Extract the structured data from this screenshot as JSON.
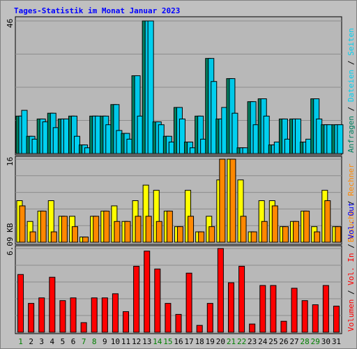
{
  "colors": {
    "background": "#c0c0c0",
    "plot_bg": "#b8b8b8",
    "grid": "#8c8c8c",
    "title": "#0000ff",
    "requests": "#008060",
    "pages": "#00d0f0",
    "files": "#00c8e8",
    "visits": "#ffff00",
    "hosts": "#ff8800",
    "kb_in": "#ff0000",
    "kb_out": "#0000ff",
    "volume": "#ff0000",
    "weekday_label": "#000000",
    "weekend_label": "#008000"
  },
  "chart_data": {
    "title": "Tages-Statistik im Monat Januar 2023",
    "type": "bar",
    "days": [
      1,
      2,
      3,
      4,
      5,
      6,
      7,
      8,
      9,
      10,
      11,
      12,
      13,
      14,
      15,
      16,
      17,
      18,
      19,
      20,
      21,
      22,
      23,
      24,
      25,
      26,
      27,
      28,
      29,
      30,
      31
    ],
    "weekend_days": [
      1,
      7,
      8,
      14,
      15,
      21,
      22,
      28,
      29
    ],
    "panels": [
      {
        "ymax_label": "46",
        "ymax": 46,
        "right_labels": [
          "Anfragen",
          "Dateien",
          "Seiten"
        ],
        "series": [
          {
            "name": "Anfragen",
            "values": [
              13,
              6,
              12,
              14,
              12,
              13,
              3,
              13,
              13,
              17,
              7,
              27,
              46,
              11,
              6,
              16,
              4,
              13,
              33,
              12,
              26,
              2,
              18,
              19,
              3,
              12,
              12,
              4,
              19,
              10,
              10
            ]
          },
          {
            "name": "Dateien",
            "values": [
              13,
              6,
              12,
              14,
              12,
              13,
              3,
              13,
              13,
              17,
              7,
              27,
              46,
              11,
              6,
              16,
              4,
              13,
              33,
              12,
              26,
              2,
              18,
              19,
              3,
              12,
              12,
              4,
              19,
              10,
              10
            ]
          },
          {
            "name": "Seiten",
            "values": [
              15,
              5,
              11,
              9,
              12,
              6,
              2,
              13,
              10,
              8,
              5,
              13,
              46,
              10,
              4,
              12,
              2,
              5,
              25,
              16,
              14,
              2,
              10,
              13,
              4,
              5,
              12,
              5,
              12,
              10,
              10
            ]
          }
        ]
      },
      {
        "ymax_label": "16",
        "ymax": 16,
        "right_labels": [
          "Besuche",
          "Rechner"
        ],
        "series": [
          {
            "name": "Besuche",
            "values": [
              8,
              4,
              6,
              8,
              5,
              5,
              1,
              5,
              6,
              7,
              4,
              8,
              11,
              10,
              6,
              3,
              10,
              2,
              5,
              12,
              16,
              12,
              2,
              8,
              8,
              3,
              4,
              6,
              3,
              10,
              3
            ]
          },
          {
            "name": "Rechner",
            "values": [
              7,
              2,
              6,
              2,
              5,
              3,
              1,
              5,
              6,
              4,
              4,
              5,
              5,
              4,
              6,
              3,
              5,
              2,
              3,
              16,
              16,
              5,
              2,
              4,
              7,
              3,
              4,
              6,
              2,
              8,
              3
            ]
          }
        ]
      },
      {
        "ymax_label": "6.09 KB",
        "ymax": 6.09,
        "right_labels": [
          "Volumen",
          "Vol. In",
          "Vol. Out"
        ],
        "series": [
          {
            "name": "Volumen",
            "values": [
              4.2,
              2.1,
              2.5,
              4.0,
              2.3,
              2.5,
              0.7,
              2.5,
              2.5,
              2.8,
              1.5,
              4.8,
              5.9,
              4.6,
              2.1,
              1.3,
              4.3,
              0.5,
              2.1,
              6.09,
              3.6,
              4.8,
              0.6,
              3.4,
              3.4,
              0.8,
              3.2,
              2.3,
              2.0,
              3.4,
              1.9
            ]
          }
        ]
      }
    ]
  }
}
